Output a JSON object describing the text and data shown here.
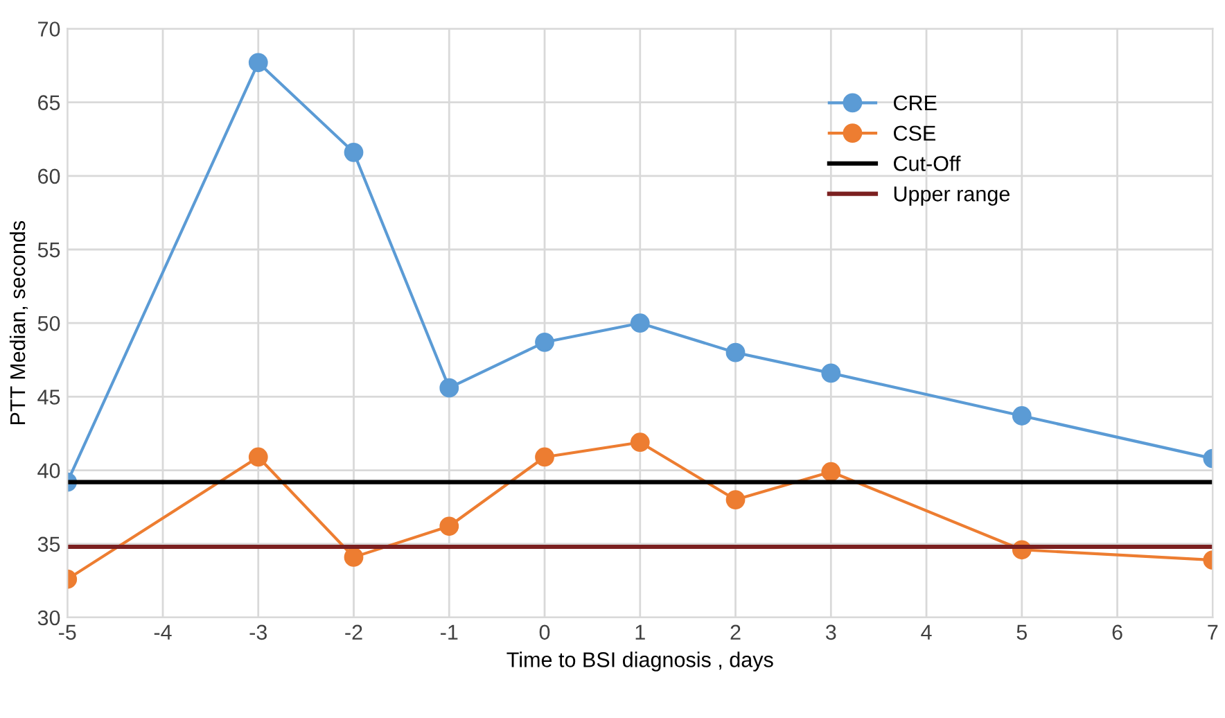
{
  "chart_data": {
    "type": "line",
    "xlabel": "Time to BSI diagnosis , days",
    "ylabel": "PTT Median, seconds",
    "xlim": [
      -5,
      7
    ],
    "xticks": [
      -5,
      -4,
      -3,
      -2,
      -1,
      0,
      1,
      2,
      3,
      4,
      5,
      6,
      7
    ],
    "ylim": [
      30,
      70
    ],
    "yticks": [
      30,
      35,
      40,
      45,
      50,
      55,
      60,
      65,
      70
    ],
    "grid": true,
    "legend": "top right",
    "series": [
      {
        "name": "CRE",
        "color": "#5b9bd5",
        "marker": "circle",
        "x": [
          -5,
          -3,
          -2,
          -1,
          0,
          1,
          2,
          3,
          5,
          7
        ],
        "values": [
          39.2,
          67.7,
          61.6,
          45.6,
          48.7,
          50.0,
          48.0,
          46.6,
          43.7,
          40.8
        ]
      },
      {
        "name": "CSE",
        "color": "#ed7d31",
        "marker": "circle",
        "x": [
          -5,
          -3,
          -2,
          -1,
          0,
          1,
          2,
          3,
          5,
          7
        ],
        "values": [
          32.6,
          40.9,
          34.1,
          36.2,
          40.9,
          41.9,
          38.0,
          39.9,
          34.6,
          33.9
        ]
      },
      {
        "name": "Cut-Off",
        "color": "#000000",
        "marker": "none",
        "x": [
          -5,
          7
        ],
        "values": [
          39.2,
          39.2
        ]
      },
      {
        "name": "Upper range",
        "color": "#7b2020",
        "marker": "none",
        "x": [
          -5,
          7
        ],
        "values": [
          34.8,
          34.8
        ]
      }
    ]
  }
}
